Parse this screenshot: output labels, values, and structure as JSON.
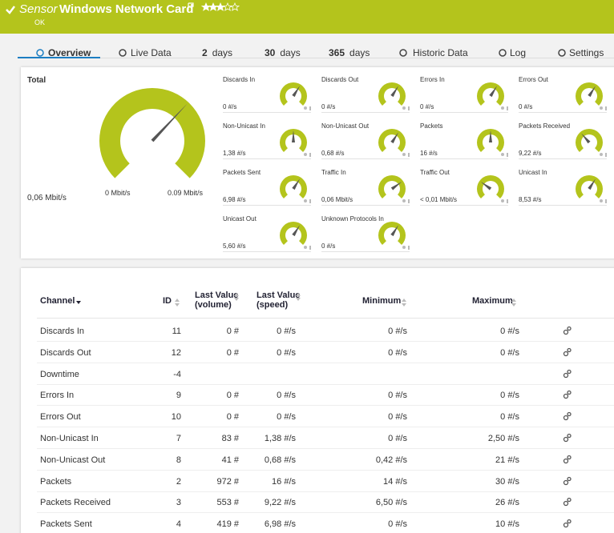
{
  "header": {
    "prefix": "Sensor",
    "title": "Windows Network Card",
    "status": "OK"
  },
  "tabs": [
    {
      "label": "Overview"
    },
    {
      "label": "Live Data"
    },
    {
      "count": "2",
      "unit": "days"
    },
    {
      "count": "30",
      "unit": "days"
    },
    {
      "count": "365",
      "unit": "days"
    },
    {
      "label": "Historic Data"
    },
    {
      "label": "Log"
    },
    {
      "label": "Settings"
    }
  ],
  "total": {
    "label": "Total",
    "value": "0,06 Mbit/s",
    "min": "0 Mbit/s",
    "max": "0.09 Mbit/s"
  },
  "gauges": [
    {
      "label": "Discards In",
      "value": "0 #/s"
    },
    {
      "label": "Discards Out",
      "value": "0 #/s"
    },
    {
      "label": "Errors In",
      "value": "0 #/s"
    },
    {
      "label": "Errors Out",
      "value": "0 #/s"
    },
    {
      "label": "Non-Unicast In",
      "value": "1,38 #/s"
    },
    {
      "label": "Non-Unicast Out",
      "value": "0,68 #/s"
    },
    {
      "label": "Packets",
      "value": "16 #/s"
    },
    {
      "label": "Packets Received",
      "value": "9,22 #/s"
    },
    {
      "label": "Packets Sent",
      "value": "6,98 #/s"
    },
    {
      "label": "Traffic In",
      "value": "0,06 Mbit/s"
    },
    {
      "label": "Traffic Out",
      "value": "< 0,01 Mbit/s"
    },
    {
      "label": "Unicast In",
      "value": "8,53 #/s"
    },
    {
      "label": "Unicast Out",
      "value": "5,60 #/s"
    },
    {
      "label": "Unknown Protocols In",
      "value": "0 #/s"
    }
  ],
  "table": {
    "headers": [
      [
        "Channel"
      ],
      [
        "ID"
      ],
      [
        "Last Value",
        "(volume)"
      ],
      [
        "Last Value",
        "(speed)"
      ],
      [
        "Minimum"
      ],
      [
        "Maximum"
      ]
    ],
    "rows": [
      [
        "Discards In",
        11,
        "0 #",
        "0 #/s",
        "0 #/s",
        "0 #/s"
      ],
      [
        "Discards Out",
        12,
        "0 #",
        "0 #/s",
        "0 #/s",
        "0 #/s"
      ],
      [
        "Downtime",
        -4,
        null,
        null,
        null,
        null
      ],
      [
        "Errors In",
        9,
        "0 #",
        "0 #/s",
        "0 #/s",
        "0 #/s"
      ],
      [
        "Errors Out",
        10,
        "0 #",
        "0 #/s",
        "0 #/s",
        "0 #/s"
      ],
      [
        "Non-Unicast In",
        7,
        "83 #",
        "1,38 #/s",
        "0 #/s",
        "2,50 #/s"
      ],
      [
        "Non-Unicast Out",
        8,
        "41 #",
        "0,68 #/s",
        "0,42 #/s",
        "21 #/s"
      ],
      [
        "Packets",
        2,
        "972 #",
        "16 #/s",
        "14 #/s",
        "30 #/s"
      ],
      [
        "Packets Received",
        3,
        "553 #",
        "9,22 #/s",
        "6,50 #/s",
        "26 #/s"
      ],
      [
        "Packets Sent",
        4,
        "419 #",
        "6,98 #/s",
        "0 #/s",
        "10 #/s"
      ]
    ]
  }
}
